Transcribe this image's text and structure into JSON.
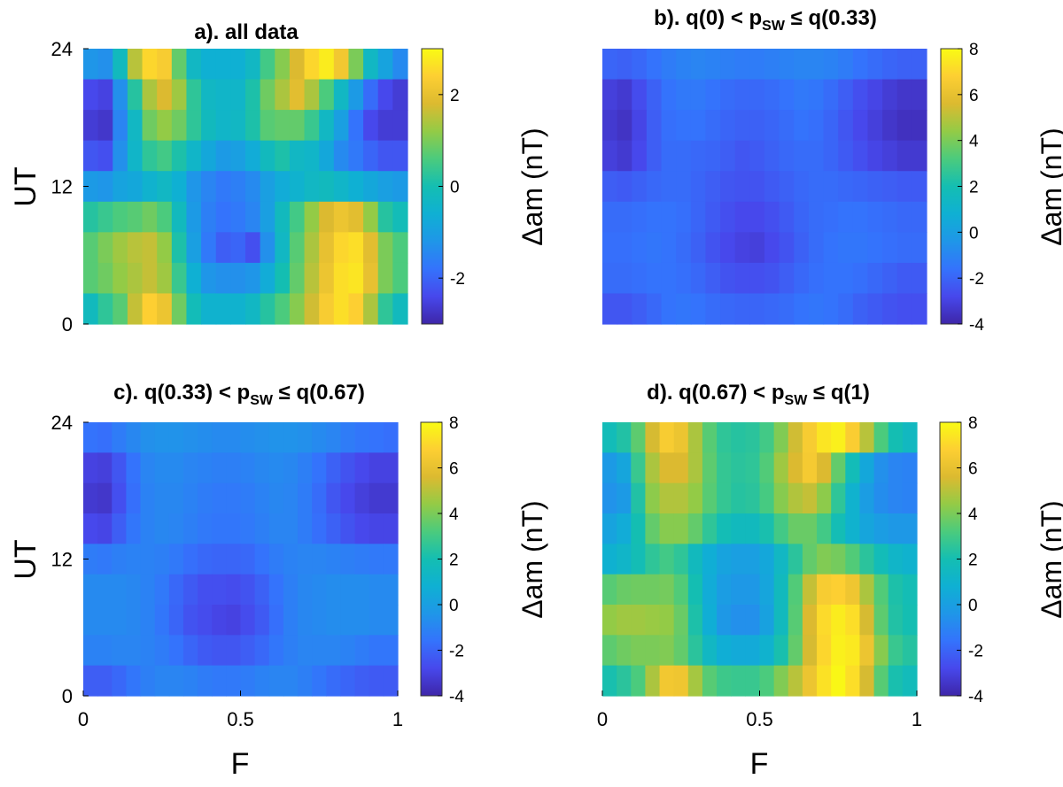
{
  "chart_data": [
    {
      "type": "heatmap",
      "id": "a",
      "title_main": "a). all data",
      "title_sub": "",
      "title_rel": "",
      "xlabel": "",
      "ylabel": "UT",
      "x_tick_labels": [],
      "y_tick_labels": [
        "24",
        "12",
        "0"
      ],
      "xlim": [
        0,
        1
      ],
      "ylim": [
        0,
        24
      ],
      "colorbar": {
        "label": "Δam (nT)",
        "min": -3,
        "max": 3,
        "ticks": [
          -2,
          0,
          2
        ],
        "tick_labels": [
          "-2",
          "0",
          "2"
        ]
      },
      "grid": [
        [
          -1.2,
          -1.3,
          -0.2,
          1.5,
          2.5,
          2.3,
          0.8,
          -0.3,
          -0.6,
          -0.6,
          -0.6,
          -0.3,
          0.5,
          1.1,
          1.8,
          2.5,
          2.8,
          2.2,
          1.0,
          -0.3,
          -0.9,
          -1.4
        ],
        [
          -2.4,
          -2.5,
          -1.3,
          0.2,
          1.4,
          1.8,
          1.3,
          0.3,
          -0.3,
          -0.4,
          -0.4,
          0.1,
          0.9,
          1.4,
          1.9,
          1.4,
          0.6,
          -0.3,
          -1.1,
          -1.9,
          -2.4,
          -2.6
        ],
        [
          -2.6,
          -2.7,
          -1.5,
          -0.3,
          0.9,
          1.2,
          0.9,
          0.3,
          -0.2,
          -0.4,
          -0.3,
          0.1,
          0.7,
          0.8,
          0.8,
          0.4,
          -0.3,
          -1.0,
          -1.8,
          -2.4,
          -2.6,
          -2.6
        ],
        [
          -2.2,
          -2.3,
          -1.3,
          -0.4,
          0.3,
          0.5,
          0.1,
          -0.4,
          -0.8,
          -1.1,
          -1.0,
          -0.7,
          -0.2,
          0.1,
          -0.3,
          -0.4,
          -0.8,
          -1.4,
          -1.7,
          -2.0,
          -2.2,
          -2.2
        ],
        [
          -1.1,
          -1.2,
          -0.9,
          -0.8,
          -0.5,
          -0.3,
          -0.6,
          -1.2,
          -1.5,
          -1.7,
          -1.6,
          -1.4,
          -1.0,
          -0.7,
          -0.5,
          -0.3,
          -0.2,
          -0.4,
          -0.6,
          -0.8,
          -1.0,
          -1.1
        ],
        [
          0.2,
          0.4,
          0.6,
          0.7,
          0.9,
          0.6,
          -0.2,
          -1.1,
          -1.6,
          -1.8,
          -1.7,
          -1.5,
          -1.0,
          -0.2,
          0.5,
          1.2,
          1.8,
          2.1,
          1.9,
          1.2,
          0.2,
          -0.1
        ],
        [
          0.7,
          1.0,
          1.3,
          1.5,
          1.6,
          1.2,
          0.1,
          -1.0,
          -1.7,
          -2.1,
          -2.0,
          -2.3,
          -1.3,
          -0.3,
          0.7,
          1.4,
          2.0,
          2.5,
          2.6,
          1.9,
          1.0,
          0.6
        ],
        [
          0.7,
          0.9,
          1.2,
          1.4,
          1.6,
          1.3,
          0.4,
          -0.6,
          -1.2,
          -1.3,
          -1.3,
          -1.2,
          -0.7,
          0.0,
          0.8,
          1.5,
          2.1,
          2.6,
          2.7,
          2.0,
          1.0,
          0.6
        ],
        [
          -0.2,
          0.3,
          0.7,
          1.6,
          2.4,
          2.1,
          0.9,
          -0.1,
          -0.5,
          -0.5,
          -0.5,
          -0.3,
          0.2,
          0.6,
          1.1,
          1.7,
          2.3,
          2.6,
          2.4,
          1.4,
          0.3,
          -0.2
        ]
      ]
    },
    {
      "type": "heatmap",
      "id": "b",
      "title_main": "b). q(0) < p",
      "title_sub": "SW",
      "title_rel": " ≤ q(0.33)",
      "xlabel": "",
      "ylabel": "",
      "x_tick_labels": [],
      "y_tick_labels": [],
      "xlim": [
        0,
        1
      ],
      "ylim": [
        0,
        24
      ],
      "colorbar": {
        "label": "Δam (nT)",
        "min": -4,
        "max": 8,
        "ticks": [
          -4,
          -2,
          0,
          2,
          4,
          6,
          8
        ],
        "tick_labels": [
          "-4",
          "-2",
          "0",
          "2",
          "4",
          "6",
          "8"
        ]
      },
      "grid": [
        [
          -2.0,
          -2.1,
          -1.9,
          -1.6,
          -1.3,
          -1.1,
          -1.0,
          -1.1,
          -1.2,
          -1.3,
          -1.3,
          -1.2,
          -1.1,
          -1.0,
          -1.0,
          -1.1,
          -1.3,
          -1.6,
          -1.8,
          -2.0,
          -2.1,
          -2.1
        ],
        [
          -3.1,
          -3.3,
          -2.7,
          -2.1,
          -1.6,
          -1.4,
          -1.4,
          -1.6,
          -1.8,
          -1.9,
          -1.9,
          -1.8,
          -1.6,
          -1.4,
          -1.5,
          -1.8,
          -2.2,
          -2.6,
          -2.9,
          -3.2,
          -3.4,
          -3.4
        ],
        [
          -3.3,
          -3.5,
          -2.9,
          -2.2,
          -1.7,
          -1.6,
          -1.6,
          -1.8,
          -2.0,
          -2.1,
          -2.1,
          -2.0,
          -1.8,
          -1.6,
          -1.7,
          -2.0,
          -2.4,
          -2.8,
          -3.1,
          -3.4,
          -3.6,
          -3.6
        ],
        [
          -3.1,
          -3.3,
          -2.8,
          -2.2,
          -1.8,
          -1.8,
          -1.9,
          -2.0,
          -2.2,
          -2.4,
          -2.3,
          -2.1,
          -1.9,
          -1.8,
          -1.8,
          -2.0,
          -2.3,
          -2.6,
          -2.9,
          -3.1,
          -3.3,
          -3.3
        ],
        [
          -2.2,
          -2.3,
          -2.1,
          -1.9,
          -1.8,
          -1.8,
          -2.0,
          -2.2,
          -2.4,
          -2.5,
          -2.5,
          -2.3,
          -2.1,
          -1.9,
          -1.8,
          -1.8,
          -1.9,
          -2.0,
          -2.1,
          -2.2,
          -2.3,
          -2.3
        ],
        [
          -1.8,
          -1.8,
          -1.7,
          -1.6,
          -1.6,
          -1.7,
          -2.0,
          -2.3,
          -2.6,
          -2.8,
          -2.8,
          -2.6,
          -2.3,
          -2.0,
          -1.8,
          -1.7,
          -1.6,
          -1.6,
          -1.7,
          -1.8,
          -1.9,
          -1.9
        ],
        [
          -1.7,
          -1.7,
          -1.6,
          -1.5,
          -1.6,
          -1.8,
          -2.1,
          -2.5,
          -2.8,
          -3.0,
          -3.1,
          -2.8,
          -2.5,
          -2.1,
          -1.8,
          -1.6,
          -1.5,
          -1.5,
          -1.6,
          -1.7,
          -1.8,
          -1.8
        ],
        [
          -1.8,
          -1.8,
          -1.7,
          -1.6,
          -1.6,
          -1.7,
          -1.9,
          -2.2,
          -2.5,
          -2.6,
          -2.6,
          -2.5,
          -2.2,
          -1.9,
          -1.7,
          -1.6,
          -1.6,
          -1.7,
          -1.9,
          -2.1,
          -2.3,
          -2.3
        ],
        [
          -2.4,
          -2.4,
          -2.2,
          -1.9,
          -1.6,
          -1.5,
          -1.6,
          -1.8,
          -1.9,
          -2.0,
          -2.0,
          -1.9,
          -1.8,
          -1.6,
          -1.5,
          -1.6,
          -1.8,
          -2.1,
          -2.3,
          -2.5,
          -2.6,
          -2.6
        ]
      ]
    },
    {
      "type": "heatmap",
      "id": "c",
      "title_main": "c). q(0.33) < p",
      "title_sub": "SW",
      "title_rel": " ≤ q(0.67)",
      "xlabel": "F",
      "ylabel": "UT",
      "x_tick_labels": [
        "0",
        "0.5",
        "1"
      ],
      "y_tick_labels": [
        "24",
        "12",
        "0"
      ],
      "xlim": [
        0,
        1
      ],
      "ylim": [
        0,
        24
      ],
      "colorbar": {
        "label": "Δam (nT)",
        "min": -4,
        "max": 8,
        "ticks": [
          -4,
          -2,
          0,
          2,
          4,
          6,
          8
        ],
        "tick_labels": [
          "-4",
          "-2",
          "0",
          "2",
          "4",
          "6",
          "8"
        ]
      },
      "grid": [
        [
          -1.6,
          -1.7,
          -1.3,
          -0.9,
          -0.6,
          -0.5,
          -0.5,
          -0.6,
          -0.7,
          -0.8,
          -0.8,
          -0.7,
          -0.6,
          -0.5,
          -0.5,
          -0.6,
          -0.8,
          -1.0,
          -1.3,
          -1.5,
          -1.6,
          -1.7
        ],
        [
          -3.0,
          -3.1,
          -2.4,
          -1.6,
          -1.0,
          -0.8,
          -0.8,
          -1.0,
          -1.1,
          -1.2,
          -1.2,
          -1.1,
          -0.9,
          -0.8,
          -0.9,
          -1.2,
          -1.6,
          -2.1,
          -2.5,
          -2.8,
          -3.0,
          -3.0
        ],
        [
          -3.3,
          -3.4,
          -2.6,
          -1.7,
          -1.1,
          -0.9,
          -0.9,
          -1.1,
          -1.3,
          -1.4,
          -1.4,
          -1.3,
          -1.1,
          -0.9,
          -1.0,
          -1.3,
          -1.8,
          -2.4,
          -2.8,
          -3.1,
          -3.3,
          -3.3
        ],
        [
          -2.8,
          -2.9,
          -2.2,
          -1.5,
          -1.1,
          -0.9,
          -1.0,
          -1.2,
          -1.4,
          -1.5,
          -1.5,
          -1.4,
          -1.2,
          -1.0,
          -1.0,
          -1.3,
          -1.7,
          -2.1,
          -2.5,
          -2.8,
          -2.9,
          -2.9
        ],
        [
          -1.3,
          -1.4,
          -1.2,
          -1.1,
          -1.1,
          -1.2,
          -1.4,
          -1.7,
          -1.9,
          -2.0,
          -2.0,
          -1.9,
          -1.6,
          -1.3,
          -1.1,
          -1.0,
          -1.0,
          -1.1,
          -1.2,
          -1.3,
          -1.4,
          -1.4
        ],
        [
          -0.8,
          -0.8,
          -0.8,
          -0.9,
          -1.1,
          -1.4,
          -1.9,
          -2.3,
          -2.6,
          -2.6,
          -2.7,
          -2.5,
          -2.1,
          -1.6,
          -1.2,
          -0.9,
          -0.8,
          -0.7,
          -0.7,
          -0.7,
          -0.8,
          -0.8
        ],
        [
          -0.8,
          -0.8,
          -0.8,
          -0.9,
          -1.1,
          -1.5,
          -2.0,
          -2.5,
          -2.7,
          -2.9,
          -3.0,
          -2.7,
          -2.3,
          -1.7,
          -1.2,
          -0.9,
          -0.8,
          -0.7,
          -0.7,
          -0.7,
          -0.8,
          -0.8
        ],
        [
          -1.1,
          -1.1,
          -1.0,
          -1.0,
          -1.1,
          -1.3,
          -1.6,
          -2.0,
          -2.3,
          -2.4,
          -2.4,
          -2.2,
          -1.9,
          -1.5,
          -1.2,
          -1.0,
          -1.0,
          -1.0,
          -1.1,
          -1.3,
          -1.5,
          -1.5
        ],
        [
          -2.2,
          -2.2,
          -1.9,
          -1.5,
          -1.2,
          -1.0,
          -1.0,
          -1.1,
          -1.3,
          -1.4,
          -1.4,
          -1.3,
          -1.1,
          -1.0,
          -1.0,
          -1.2,
          -1.5,
          -1.8,
          -2.0,
          -2.2,
          -2.3,
          -2.3
        ]
      ]
    },
    {
      "type": "heatmap",
      "id": "d",
      "title_main": "d). q(0.67) < p",
      "title_sub": "SW",
      "title_rel": " ≤ q(1)",
      "xlabel": "F",
      "ylabel": "",
      "x_tick_labels": [
        "0",
        "0.5",
        "1"
      ],
      "y_tick_labels": [],
      "xlim": [
        0,
        1
      ],
      "ylim": [
        0,
        24
      ],
      "colorbar": {
        "label": "Δam (nT)",
        "min": -4,
        "max": 8,
        "ticks": [
          -4,
          -2,
          0,
          2,
          4,
          6,
          8
        ],
        "tick_labels": [
          "-4",
          "-2",
          "0",
          "2",
          "4",
          "6",
          "8"
        ]
      },
      "grid": [
        [
          1.8,
          2.3,
          3.5,
          5.5,
          6.6,
          6.2,
          4.8,
          3.4,
          2.6,
          2.4,
          2.5,
          3.0,
          4.1,
          5.4,
          6.6,
          7.4,
          7.7,
          6.7,
          5.0,
          3.2,
          2.0,
          1.5
        ],
        [
          -0.2,
          0.3,
          2.8,
          4.8,
          5.6,
          5.6,
          4.8,
          3.5,
          2.7,
          2.5,
          2.6,
          3.3,
          4.6,
          5.6,
          6.5,
          5.6,
          3.6,
          1.8,
          0.4,
          -0.6,
          -1.0,
          -1.1
        ],
        [
          -0.5,
          -0.2,
          2.3,
          4.3,
          4.9,
          4.9,
          4.4,
          3.4,
          2.7,
          2.4,
          2.5,
          3.1,
          4.2,
          4.9,
          5.2,
          4.3,
          2.6,
          1.0,
          -0.1,
          -0.7,
          -1.0,
          -1.1
        ],
        [
          0.2,
          0.6,
          2.0,
          3.6,
          4.2,
          4.2,
          3.6,
          2.6,
          1.9,
          1.6,
          1.6,
          2.1,
          3.0,
          3.7,
          3.7,
          3.0,
          1.9,
          1.0,
          0.3,
          -0.1,
          -0.3,
          -0.3
        ],
        [
          0.9,
          1.2,
          1.9,
          2.6,
          3.0,
          2.6,
          1.6,
          0.7,
          0.2,
          0.0,
          0.0,
          0.4,
          1.4,
          2.5,
          3.6,
          4.1,
          3.9,
          3.3,
          2.5,
          1.8,
          1.2,
          1.0
        ],
        [
          3.4,
          3.7,
          3.8,
          3.8,
          3.9,
          3.3,
          2.0,
          0.6,
          -0.1,
          -0.3,
          -0.3,
          0.3,
          1.6,
          3.3,
          5.2,
          6.6,
          6.8,
          6.3,
          4.8,
          3.3,
          2.2,
          1.9
        ],
        [
          4.4,
          4.6,
          4.6,
          4.5,
          4.4,
          3.7,
          2.2,
          0.7,
          -0.3,
          -0.6,
          -0.6,
          0.1,
          1.6,
          3.4,
          5.6,
          7.1,
          7.6,
          7.2,
          5.5,
          3.5,
          2.3,
          2.0
        ],
        [
          3.5,
          3.8,
          4.0,
          4.0,
          4.1,
          3.6,
          2.5,
          1.4,
          0.7,
          0.5,
          0.5,
          1.0,
          2.1,
          3.6,
          5.5,
          7.0,
          7.7,
          7.5,
          6.2,
          4.2,
          2.8,
          2.4
        ],
        [
          2.1,
          2.5,
          3.2,
          4.8,
          6.4,
          6.3,
          4.7,
          3.4,
          2.9,
          2.8,
          2.8,
          3.2,
          4.1,
          5.0,
          6.2,
          7.3,
          7.9,
          7.2,
          5.5,
          3.4,
          2.1,
          1.7
        ]
      ]
    }
  ]
}
